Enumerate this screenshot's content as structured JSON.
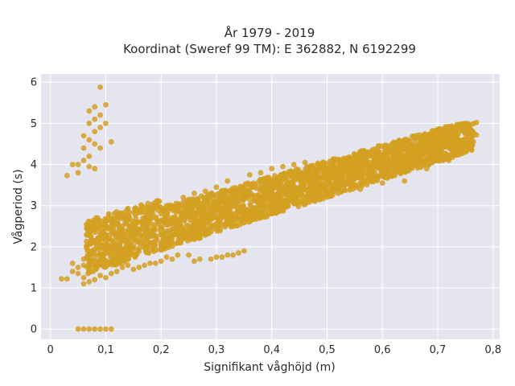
{
  "chart_data": {
    "type": "scatter",
    "title_line1": "År 1979 - 2019",
    "title_line2": "Koordinat (Sweref 99 TM): E 362882, N 6192299",
    "xlabel": "Signifikant våghöjd (m)",
    "ylabel": "Vågperiod (s)",
    "xlim": [
      -0.017,
      0.812
    ],
    "ylim": [
      -0.25,
      6.2
    ],
    "x_ticks": [
      0,
      0.1,
      0.2,
      0.3,
      0.4,
      0.5,
      0.6,
      0.7,
      0.8
    ],
    "x_tick_labels": [
      "0",
      "0,1",
      "0,2",
      "0,3",
      "0,4",
      "0,5",
      "0,6",
      "0,7",
      "0,8"
    ],
    "y_ticks": [
      0,
      1,
      2,
      3,
      4,
      5,
      6
    ],
    "y_tick_labels": [
      "0",
      "1",
      "2",
      "3",
      "4",
      "5",
      "6"
    ],
    "grid": true,
    "plot_background": "#e5e5ef",
    "marker_color": "#d4a021",
    "series": [
      {
        "name": "",
        "points": [
          [
            0.02,
            1.22
          ],
          [
            0.03,
            1.22
          ],
          [
            0.03,
            3.73
          ],
          [
            0.04,
            1.4
          ],
          [
            0.04,
            1.6
          ],
          [
            0.04,
            4.0
          ],
          [
            0.05,
            0.0
          ],
          [
            0.06,
            0.0
          ],
          [
            0.07,
            0.0
          ],
          [
            0.08,
            0.0
          ],
          [
            0.09,
            0.0
          ],
          [
            0.1,
            0.0
          ],
          [
            0.11,
            0.0
          ],
          [
            0.05,
            1.5
          ],
          [
            0.05,
            1.35
          ],
          [
            0.06,
            1.25
          ],
          [
            0.06,
            1.55
          ],
          [
            0.06,
            1.7
          ],
          [
            0.05,
            3.8
          ],
          [
            0.05,
            4.0
          ],
          [
            0.06,
            4.1
          ],
          [
            0.06,
            4.4
          ],
          [
            0.06,
            4.7
          ],
          [
            0.07,
            4.2
          ],
          [
            0.07,
            4.6
          ],
          [
            0.07,
            5.0
          ],
          [
            0.07,
            5.3
          ],
          [
            0.08,
            4.5
          ],
          [
            0.08,
            4.8
          ],
          [
            0.08,
            5.1
          ],
          [
            0.08,
            5.4
          ],
          [
            0.09,
            4.4
          ],
          [
            0.09,
            4.9
          ],
          [
            0.09,
            5.2
          ],
          [
            0.09,
            5.88
          ],
          [
            0.1,
            5.0
          ],
          [
            0.1,
            5.45
          ],
          [
            0.11,
            4.55
          ],
          [
            0.08,
            3.9
          ],
          [
            0.07,
            3.95
          ],
          [
            0.06,
            1.1
          ],
          [
            0.07,
            1.15
          ],
          [
            0.07,
            1.9
          ],
          [
            0.08,
            1.2
          ],
          [
            0.08,
            2.1
          ],
          [
            0.09,
            1.3
          ],
          [
            0.09,
            2.2
          ],
          [
            0.1,
            1.25
          ],
          [
            0.1,
            1.6
          ],
          [
            0.1,
            2.3
          ],
          [
            0.11,
            1.35
          ],
          [
            0.11,
            2.4
          ],
          [
            0.12,
            1.4
          ],
          [
            0.12,
            2.3
          ],
          [
            0.13,
            1.5
          ],
          [
            0.13,
            2.5
          ],
          [
            0.14,
            1.55
          ],
          [
            0.14,
            2.4
          ],
          [
            0.15,
            1.45
          ],
          [
            0.15,
            2.55
          ],
          [
            0.16,
            1.5
          ],
          [
            0.16,
            2.6
          ],
          [
            0.17,
            1.55
          ],
          [
            0.18,
            1.6
          ],
          [
            0.18,
            2.85
          ],
          [
            0.19,
            1.6
          ],
          [
            0.19,
            3.0
          ],
          [
            0.2,
            1.65
          ],
          [
            0.2,
            2.8
          ],
          [
            0.21,
            1.75
          ],
          [
            0.21,
            3.0
          ],
          [
            0.22,
            1.7
          ],
          [
            0.22,
            2.95
          ],
          [
            0.23,
            1.8
          ],
          [
            0.24,
            3.2
          ],
          [
            0.25,
            1.8
          ],
          [
            0.25,
            3.1
          ],
          [
            0.26,
            1.65
          ],
          [
            0.26,
            3.3
          ],
          [
            0.27,
            1.7
          ],
          [
            0.28,
            3.35
          ],
          [
            0.29,
            1.7
          ],
          [
            0.3,
            1.75
          ],
          [
            0.3,
            3.45
          ],
          [
            0.31,
            1.75
          ],
          [
            0.32,
            1.8
          ],
          [
            0.32,
            3.6
          ],
          [
            0.33,
            1.8
          ],
          [
            0.34,
            1.85
          ],
          [
            0.35,
            1.9
          ],
          [
            0.36,
            3.75
          ],
          [
            0.38,
            3.8
          ],
          [
            0.4,
            3.9
          ],
          [
            0.42,
            3.95
          ],
          [
            0.44,
            4.0
          ],
          [
            0.46,
            4.05
          ],
          [
            0.49,
            4.0
          ],
          [
            0.52,
            4.1
          ],
          [
            0.55,
            4.1
          ],
          [
            0.58,
            4.2
          ],
          [
            0.61,
            4.25
          ],
          [
            0.64,
            4.4
          ],
          [
            0.66,
            4.5
          ],
          [
            0.68,
            4.55
          ],
          [
            0.7,
            4.5
          ],
          [
            0.72,
            4.7
          ],
          [
            0.74,
            4.9
          ],
          [
            0.75,
            5.0
          ],
          [
            0.76,
            4.75
          ],
          [
            0.77,
            4.72
          ],
          [
            0.77,
            5.02
          ],
          [
            0.2,
            2.0
          ],
          [
            0.22,
            2.1
          ],
          [
            0.25,
            2.2
          ],
          [
            0.28,
            2.4
          ],
          [
            0.3,
            2.5
          ],
          [
            0.33,
            2.7
          ],
          [
            0.36,
            2.75
          ],
          [
            0.4,
            2.95
          ],
          [
            0.44,
            3.05
          ],
          [
            0.48,
            3.15
          ],
          [
            0.52,
            3.3
          ],
          [
            0.56,
            3.4
          ],
          [
            0.6,
            3.55
          ],
          [
            0.64,
            3.6
          ],
          [
            0.68,
            3.9
          ],
          [
            0.72,
            4.1
          ]
        ]
      }
    ]
  }
}
